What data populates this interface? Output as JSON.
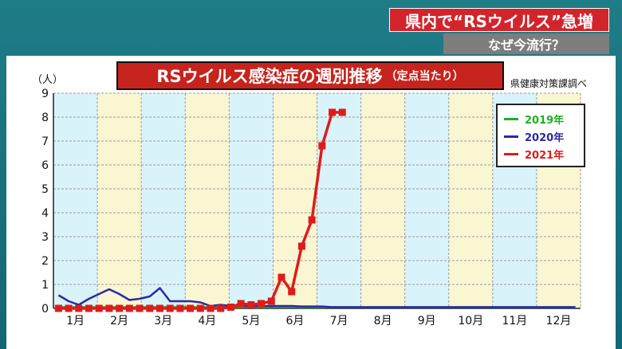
{
  "header": {
    "headline": "県内で“RSウイルス”急増",
    "subhead": "なぜ今流行？"
  },
  "chart_data": {
    "type": "line",
    "title": "RSウイルス感染症の週別推移",
    "subtitle": "（定点当たり）",
    "source": "県健康対策課調べ",
    "unit": "（人）",
    "ylim": [
      0,
      9
    ],
    "yticks": [
      "0",
      "1",
      "2",
      "3",
      "4",
      "5",
      "6",
      "7",
      "8",
      "9"
    ],
    "months": [
      "1月",
      "2月",
      "3月",
      "4月",
      "5月",
      "6月",
      "7月",
      "8月",
      "9月",
      "10月",
      "11月",
      "12月"
    ],
    "grid": true,
    "legend_position": "top-right",
    "series": [
      {
        "name": "2019年",
        "color": "#1fae26",
        "x": [
          0,
          51
        ],
        "values": [
          0.05,
          0.05
        ]
      },
      {
        "name": "2020年",
        "color": "#2a2aa8",
        "x": [
          0,
          1,
          2,
          3,
          4,
          5,
          6,
          7,
          8,
          9,
          10,
          11,
          12,
          13,
          14,
          15,
          16,
          17,
          18,
          19,
          20,
          21,
          22,
          23,
          24,
          25,
          26,
          27,
          28,
          29,
          30,
          31,
          32,
          33,
          34,
          35,
          36,
          37,
          38,
          39,
          40,
          41,
          42,
          43,
          44,
          45,
          46,
          47,
          48,
          49,
          50,
          51
        ],
        "values": [
          0.55,
          0.3,
          0.15,
          0.4,
          0.6,
          0.8,
          0.6,
          0.35,
          0.4,
          0.5,
          0.85,
          0.3,
          0.3,
          0.3,
          0.25,
          0.1,
          0.15,
          0.1,
          0.1,
          0.1,
          0.1,
          0.1,
          0.1,
          0.1,
          0.08,
          0.08,
          0.08,
          0.05,
          0.05,
          0.05,
          0.05,
          0.05,
          0.05,
          0.05,
          0.05,
          0.05,
          0.05,
          0.05,
          0.05,
          0.05,
          0.05,
          0.05,
          0.05,
          0.05,
          0.05,
          0.05,
          0.05,
          0.05,
          0.05,
          0.05,
          0.05,
          0.05
        ]
      },
      {
        "name": "2021年",
        "color": "#e01b1b",
        "x": [
          0,
          1,
          2,
          3,
          4,
          5,
          6,
          7,
          8,
          9,
          10,
          11,
          12,
          13,
          14,
          15,
          16,
          17,
          18,
          19,
          20,
          21,
          22,
          23,
          24,
          25,
          26,
          27,
          28
        ],
        "values": [
          0,
          0,
          0,
          0,
          0,
          0,
          0,
          0,
          0,
          0,
          0,
          0,
          0,
          0,
          0,
          0,
          0,
          0.05,
          0.2,
          0.15,
          0.2,
          0.3,
          1.3,
          0.7,
          2.6,
          3.7,
          6.8,
          8.2,
          8.2
        ]
      }
    ]
  }
}
